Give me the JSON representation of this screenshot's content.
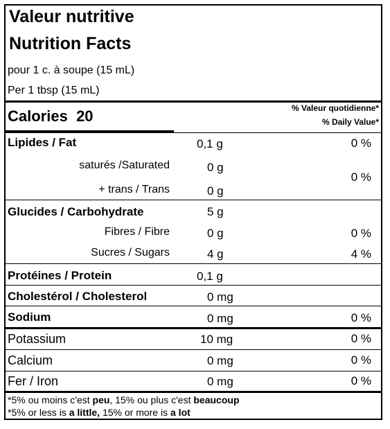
{
  "title_fr": "Valeur nutritive",
  "title_en": "Nutrition Facts",
  "serving_fr": "pour 1 c. à soupe (15 mL)",
  "serving_en": "Per 1 tbsp (15 mL)",
  "calories_label": "Calories",
  "calories_value": "20",
  "dv_header_fr": "% Valeur quotidienne*",
  "dv_header_en": "% Daily Value*",
  "nutrients": {
    "fat": {
      "label": "Lipides / Fat",
      "amount": "0,1 g",
      "dv": "0 %"
    },
    "saturated": {
      "label": "saturés /Saturated",
      "amount": "0 g"
    },
    "trans": {
      "label": "+ trans / Trans",
      "amount": "0 g"
    },
    "sat_trans_dv": "0 %",
    "carbohydrate": {
      "label": "Glucides / Carbohydrate",
      "amount": "5 g"
    },
    "fibre": {
      "label": "Fibres / Fibre",
      "amount": "0 g",
      "dv": "0 %"
    },
    "sugars": {
      "label": "Sucres / Sugars",
      "amount": "4 g",
      "dv": "4 %"
    },
    "protein": {
      "label": "Protéines / Protein",
      "amount": "0,1 g"
    },
    "cholesterol": {
      "label": "Cholestérol / Cholesterol",
      "amount": "0 mg"
    },
    "sodium": {
      "label": "Sodium",
      "amount": "0 mg",
      "dv": "0 %"
    },
    "potassium": {
      "label": "Potassium",
      "amount": "10 mg",
      "dv": "0 %"
    },
    "calcium": {
      "label": "Calcium",
      "amount": "0 mg",
      "dv": "0 %"
    },
    "iron": {
      "label": "Fer / Iron",
      "amount": "0 mg",
      "dv": "0 %"
    }
  },
  "footnote_fr": {
    "pre": "*5% ou moins c'est ",
    "b1": "peu",
    "mid": ", 15% ou plus c'est ",
    "b2": "beaucoup"
  },
  "footnote_en": {
    "pre": "*5% or less is ",
    "b1": "a little,",
    "mid": " 15% or more is ",
    "b2": "a lot"
  }
}
